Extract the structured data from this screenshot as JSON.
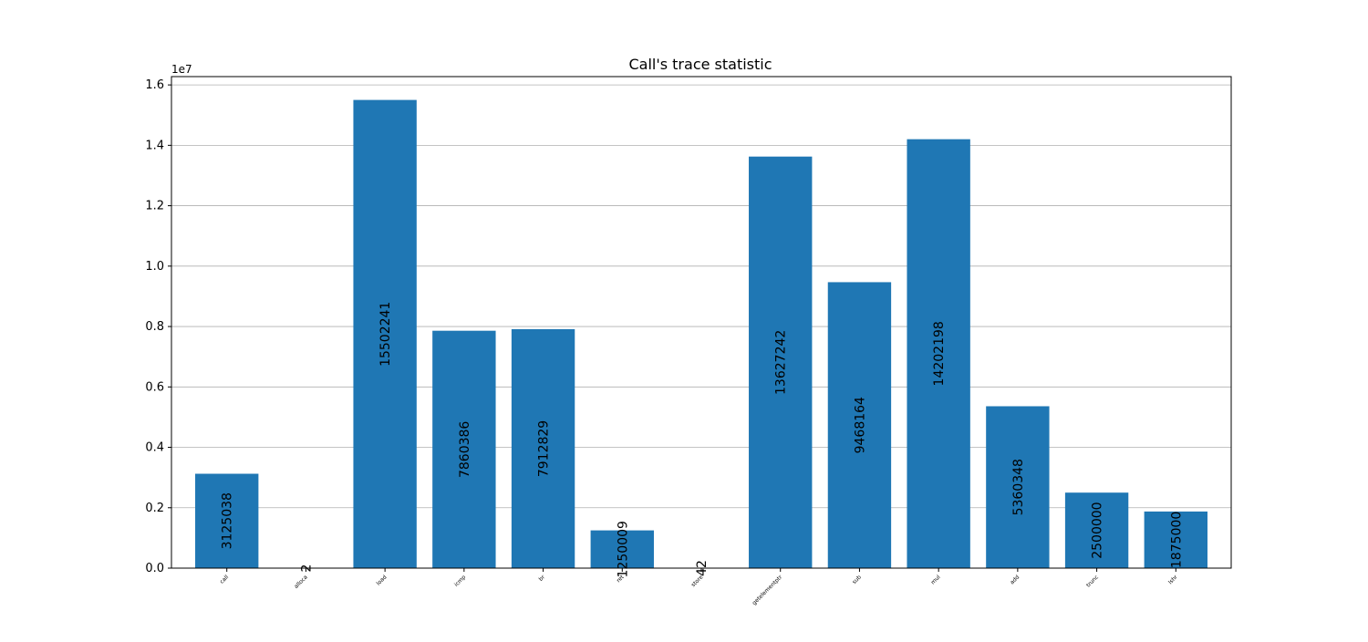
{
  "chart_data": {
    "type": "bar",
    "title": "Call's trace statistic",
    "xlabel": "",
    "ylabel": "",
    "y_scale_label": "1e7",
    "y_scale_factor": 10000000,
    "ylim": [
      0,
      16275253
    ],
    "yticks": [
      0,
      2000000,
      4000000,
      6000000,
      8000000,
      10000000,
      12000000,
      14000000,
      16000000
    ],
    "ytick_labels": [
      "0.0",
      "0.2",
      "0.4",
      "0.6",
      "0.8",
      "1.0",
      "1.2",
      "1.4",
      "1.6"
    ],
    "grid": "horizontal",
    "bar_color": "#1f77b4",
    "categories": [
      "call",
      "alloca",
      "load",
      "icmp",
      "br",
      "ret",
      "store",
      "getelementptr",
      "sub",
      "mul",
      "add",
      "trunc",
      "lshr"
    ],
    "values": [
      3125038,
      2,
      15502241,
      7860386,
      7912829,
      1250009,
      42,
      13627242,
      9468164,
      14202198,
      5360348,
      2500000,
      1875000
    ],
    "value_labels": [
      "3125038",
      "2",
      "15502241",
      "7860386",
      "7912829",
      "1250009",
      "42",
      "13627242",
      "9468164",
      "14202198",
      "5360348",
      "2500000",
      "1875000"
    ]
  }
}
